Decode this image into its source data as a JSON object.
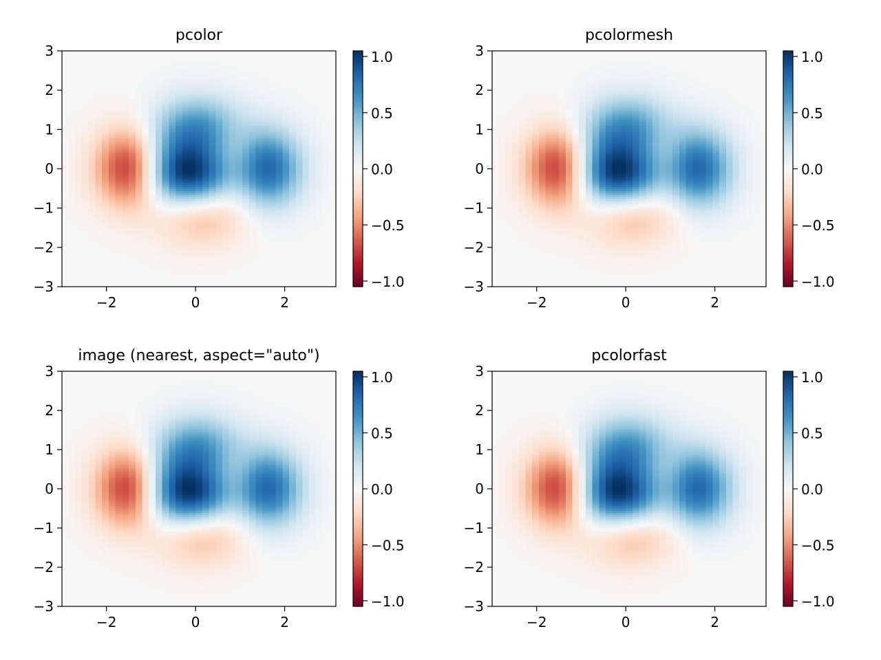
{
  "chart_data": [
    {
      "type": "heatmap",
      "title": "pcolor",
      "xlim": [
        -3,
        3.15
      ],
      "ylim": [
        -3,
        3
      ],
      "xticks": [
        -2,
        0,
        2
      ],
      "xtick_labels": [
        "−2",
        "0",
        "2"
      ],
      "yticks": [
        -3,
        -2,
        -1,
        0,
        1,
        2,
        3
      ],
      "ytick_labels": [
        "−3",
        "−2",
        "−1",
        "0",
        "1",
        "2",
        "3"
      ],
      "colorbar": {
        "cmap": "RdBu",
        "range": [
          -1.05,
          1.05
        ],
        "ticks": [
          -1,
          -0.5,
          0,
          0.5,
          1
        ],
        "tick_labels": [
          "−1.0",
          "−0.5",
          "0.0",
          "0.5",
          "1.0"
        ]
      }
    },
    {
      "type": "heatmap",
      "title": "pcolormesh",
      "xlim": [
        -3,
        3.15
      ],
      "ylim": [
        -3,
        3
      ],
      "xticks": [
        -2,
        0,
        2
      ],
      "xtick_labels": [
        "−2",
        "0",
        "2"
      ],
      "yticks": [
        -3,
        -2,
        -1,
        0,
        1,
        2,
        3
      ],
      "ytick_labels": [
        "−3",
        "−2",
        "−1",
        "0",
        "1",
        "2",
        "3"
      ],
      "colorbar": {
        "cmap": "RdBu",
        "range": [
          -1.05,
          1.05
        ],
        "ticks": [
          -1,
          -0.5,
          0,
          0.5,
          1
        ],
        "tick_labels": [
          "−1.0",
          "−0.5",
          "0.0",
          "0.5",
          "1.0"
        ]
      }
    },
    {
      "type": "heatmap",
      "title": "image (nearest, aspect=\"auto\")",
      "xlim": [
        -3,
        3.15
      ],
      "ylim": [
        -3,
        3
      ],
      "xticks": [
        -2,
        0,
        2
      ],
      "xtick_labels": [
        "−2",
        "0",
        "2"
      ],
      "yticks": [
        -3,
        -2,
        -1,
        0,
        1,
        2,
        3
      ],
      "ytick_labels": [
        "−3",
        "−2",
        "−1",
        "0",
        "1",
        "2",
        "3"
      ],
      "colorbar": {
        "cmap": "RdBu",
        "range": [
          -1.05,
          1.05
        ],
        "ticks": [
          -1,
          -0.5,
          0,
          0.5,
          1
        ],
        "tick_labels": [
          "−1.0",
          "−0.5",
          "0.0",
          "0.5",
          "1.0"
        ]
      }
    },
    {
      "type": "heatmap",
      "title": "pcolorfast",
      "xlim": [
        -3,
        3.15
      ],
      "ylim": [
        -3,
        3
      ],
      "xticks": [
        -2,
        0,
        2
      ],
      "xtick_labels": [
        "−2",
        "0",
        "2"
      ],
      "yticks": [
        -3,
        -2,
        -1,
        0,
        1,
        2,
        3
      ],
      "ytick_labels": [
        "−3",
        "−2",
        "−1",
        "0",
        "1",
        "2",
        "3"
      ],
      "colorbar": {
        "cmap": "RdBu",
        "range": [
          -1.05,
          1.05
        ],
        "ticks": [
          -1,
          -0.5,
          0,
          0.5,
          1
        ],
        "tick_labels": [
          "−1.0",
          "−0.5",
          "0.0",
          "0.5",
          "1.0"
        ]
      }
    }
  ],
  "grid": {
    "x_start": -3,
    "x_stop": 3.15,
    "x_step": 0.15,
    "y_start": -3,
    "y_stop": 3,
    "y_step": 0.05,
    "z_function": "(1 - x/2 + x^5 + y^3) * exp(-x^2 - y^2)"
  },
  "colormap": {
    "name": "RdBu",
    "stops": [
      "#67001f",
      "#b2182b",
      "#d6604d",
      "#f4a582",
      "#fddbc7",
      "#f7f7f7",
      "#d1e5f0",
      "#92c5de",
      "#4393c3",
      "#2166ac",
      "#053061"
    ]
  }
}
